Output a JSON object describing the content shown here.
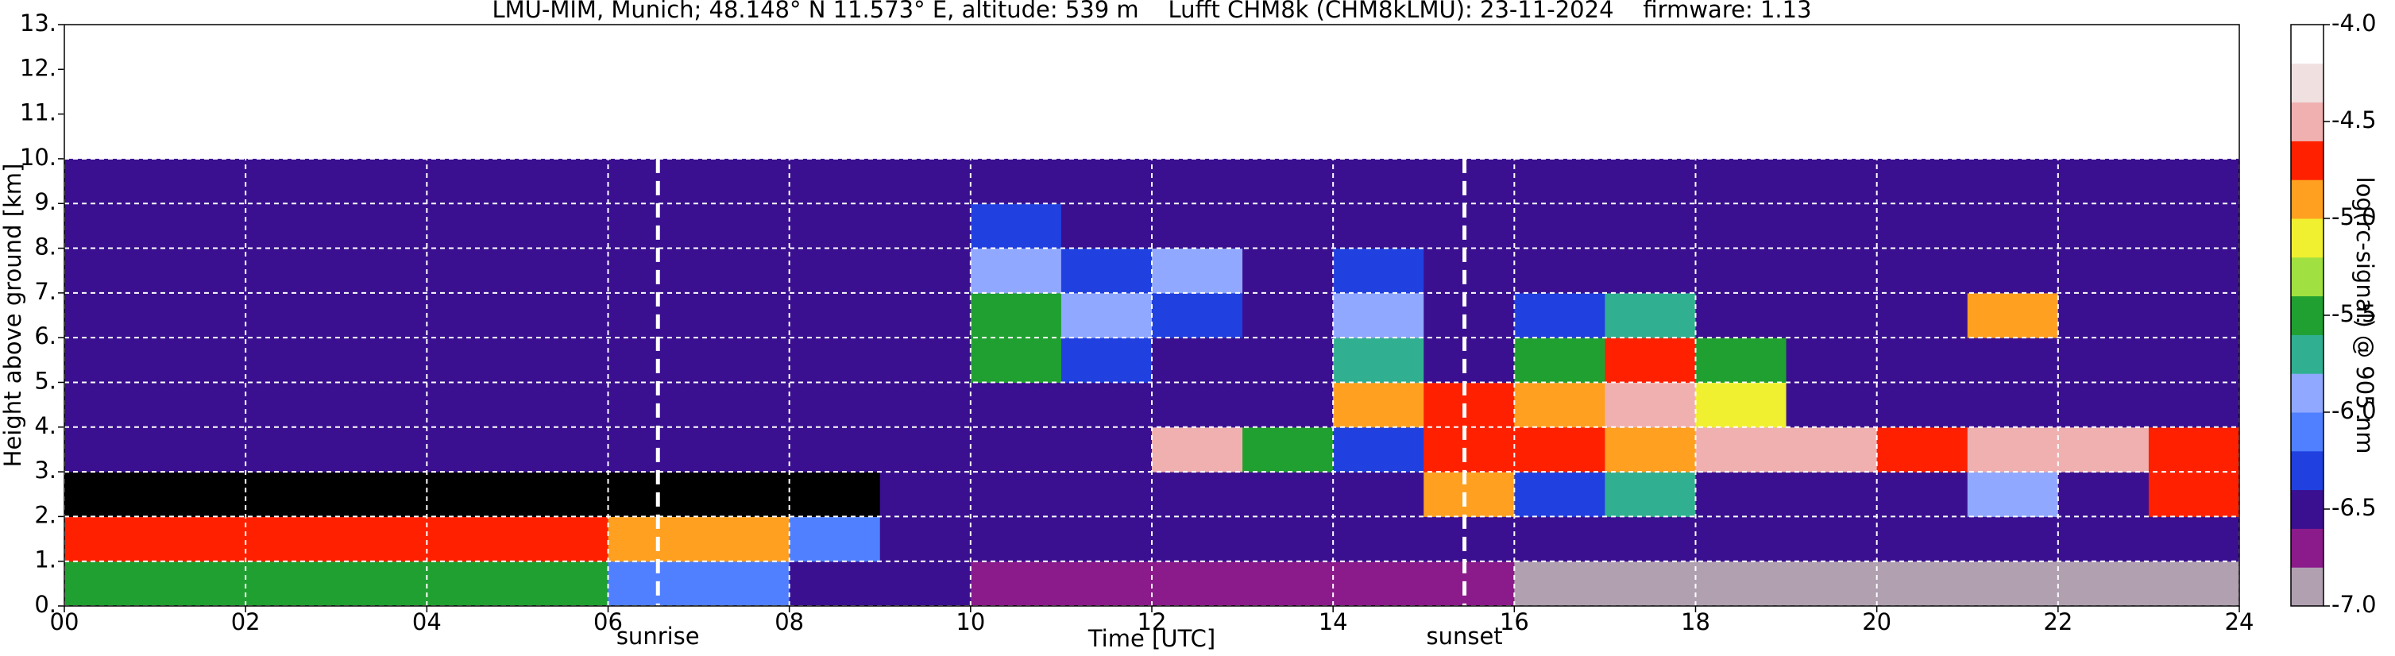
{
  "chart_data": {
    "type": "heatmap",
    "title": "LMU-MIM, Munich; 48.148° N 11.573° E, altitude: 539 m    Lufft CHM8k (CHM8kLMU): 23-11-2024    firmware: 1.13",
    "xlabel": "Time [UTC]",
    "ylabel": "Height above ground [km]",
    "xlim": [
      0,
      24
    ],
    "ylim": [
      0,
      13
    ],
    "xticks": [
      {
        "value": 0,
        "label": "00"
      },
      {
        "value": 2,
        "label": "02"
      },
      {
        "value": 4,
        "label": "04"
      },
      {
        "value": 6,
        "label": "06"
      },
      {
        "value": 8,
        "label": "08"
      },
      10,
      12,
      14,
      16,
      18,
      20,
      22,
      24
    ],
    "yticks": [
      {
        "value": 0,
        "label": "0."
      },
      {
        "value": 1,
        "label": "1."
      },
      {
        "value": 2,
        "label": "2."
      },
      {
        "value": 3,
        "label": "3."
      },
      {
        "value": 4,
        "label": "4."
      },
      {
        "value": 5,
        "label": "5."
      },
      {
        "value": 6,
        "label": "6."
      },
      {
        "value": 7,
        "label": "7."
      },
      {
        "value": 8,
        "label": "8."
      },
      {
        "value": 9,
        "label": "9."
      },
      {
        "value": 10,
        "label": "10."
      },
      {
        "value": 11,
        "label": "11."
      },
      {
        "value": 12,
        "label": "12."
      },
      {
        "value": 13,
        "label": "13."
      }
    ],
    "grid": true,
    "x_edges": [
      0,
      1,
      2,
      3,
      4,
      5,
      6,
      7,
      8,
      9,
      10,
      11,
      12,
      13,
      14,
      15,
      16,
      17,
      18,
      19,
      20,
      21,
      22,
      23,
      24
    ],
    "y_edges": [
      0,
      1,
      2,
      3,
      4,
      5,
      6,
      7,
      8,
      9,
      10
    ],
    "z": [
      [
        -5.6,
        -5.6,
        -5.6,
        -5.6,
        -5.6,
        -5.6,
        -6.1,
        -6.1,
        -6.5,
        -6.5,
        -6.7,
        -6.7,
        -6.7,
        -6.7,
        -6.7,
        -6.7,
        -6.9,
        -6.9,
        -6.9,
        -6.9,
        -6.9,
        -6.9,
        -6.9,
        -6.9
      ],
      [
        -4.7,
        -4.7,
        -4.7,
        -4.7,
        -4.7,
        -4.7,
        -5.0,
        -5.0,
        -6.1,
        -6.5,
        -6.5,
        -6.5,
        -6.5,
        -6.5,
        -6.5,
        -6.5,
        -6.5,
        -6.5,
        -6.5,
        -6.5,
        -6.5,
        -6.5,
        -6.5,
        -6.5
      ],
      [
        -7.2,
        -7.2,
        -7.2,
        -7.2,
        -7.2,
        -7.2,
        -7.2,
        -7.2,
        -7.2,
        -6.5,
        -6.5,
        -6.5,
        -6.5,
        -6.5,
        -6.5,
        -4.9,
        -6.3,
        -5.8,
        -6.5,
        -6.5,
        -6.5,
        -6.0,
        -6.5,
        -4.7
      ],
      [
        -6.5,
        -6.5,
        -6.5,
        -6.5,
        -6.5,
        -6.5,
        -6.5,
        -6.5,
        -6.5,
        -6.5,
        -6.5,
        -6.5,
        -4.5,
        -5.6,
        -6.3,
        -4.7,
        -4.7,
        -5.0,
        -4.6,
        -4.6,
        -4.7,
        -4.6,
        -4.6,
        -4.8
      ],
      [
        -6.5,
        -6.5,
        -6.5,
        -6.5,
        -6.5,
        -6.5,
        -6.5,
        -6.5,
        -6.5,
        -6.5,
        -6.5,
        -6.5,
        -6.5,
        -6.5,
        -5.0,
        -4.7,
        -4.9,
        -4.6,
        -5.2,
        -6.5,
        -6.5,
        -6.5,
        -6.5,
        -6.5
      ],
      [
        -6.5,
        -6.5,
        -6.5,
        -6.5,
        -6.5,
        -6.5,
        -6.5,
        -6.5,
        -6.5,
        -6.5,
        -5.6,
        -6.2,
        -6.5,
        -6.5,
        -5.8,
        -6.5,
        -5.4,
        -4.8,
        -5.6,
        -6.5,
        -6.5,
        -6.5,
        -6.5,
        -6.5
      ],
      [
        -6.5,
        -6.5,
        -6.5,
        -6.5,
        -6.5,
        -6.5,
        -6.5,
        -6.5,
        -6.5,
        -6.5,
        -5.4,
        -6.0,
        -6.3,
        -6.5,
        -6.0,
        -6.5,
        -6.2,
        -5.8,
        -6.5,
        -6.5,
        -6.5,
        -5.0,
        -6.5,
        -6.5
      ],
      [
        -6.5,
        -6.5,
        -6.5,
        -6.5,
        -6.5,
        -6.5,
        -6.5,
        -6.5,
        -6.5,
        -6.5,
        -5.9,
        -6.3,
        -6.0,
        -6.5,
        -6.3,
        -6.5,
        -6.5,
        -6.5,
        -6.5,
        -6.5,
        -6.5,
        -6.5,
        -6.5,
        -6.5
      ],
      [
        -6.5,
        -6.5,
        -6.5,
        -6.5,
        -6.5,
        -6.5,
        -6.5,
        -6.5,
        -6.5,
        -6.5,
        -6.2,
        -6.5,
        -6.5,
        -6.5,
        -6.5,
        -6.5,
        -6.5,
        -6.5,
        -6.5,
        -6.5,
        -6.5,
        -6.5,
        -6.5,
        -6.5
      ],
      [
        -6.5,
        -6.5,
        -6.5,
        -6.5,
        -6.5,
        -6.5,
        -6.5,
        -6.5,
        -6.5,
        -6.5,
        -6.5,
        -6.5,
        -6.5,
        -6.5,
        -6.5,
        -6.5,
        -6.5,
        -6.5,
        -6.5,
        -6.5,
        -6.5,
        -6.5,
        -6.5,
        -6.5
      ]
    ],
    "colorbar": {
      "label": "log(rc-signal) @ 905 nm",
      "lim": [
        -7,
        -4
      ],
      "ticks": [
        {
          "value": -4,
          "label": "-4.0"
        },
        -4.5,
        {
          "value": -5,
          "label": "-5.0"
        },
        -5.5,
        {
          "value": -6,
          "label": "-6.0"
        },
        -6.5,
        {
          "value": -7,
          "label": "-7.0"
        }
      ],
      "colors": [
        "#b0a0b0",
        "#8b1a8b",
        "#3a1090",
        "#2040e0",
        "#5080ff",
        "#90a8ff",
        "#30b090",
        "#20a030",
        "#a0e040",
        "#f0f030",
        "#ffa020",
        "#ff2000",
        "#f0b0b0",
        "#f0e0e0",
        "#ffffff"
      ],
      "under_color": "#000000"
    },
    "annotations": [
      {
        "text": "sunrise",
        "x": 6.55
      },
      {
        "text": "sunset",
        "x": 15.45
      }
    ]
  }
}
